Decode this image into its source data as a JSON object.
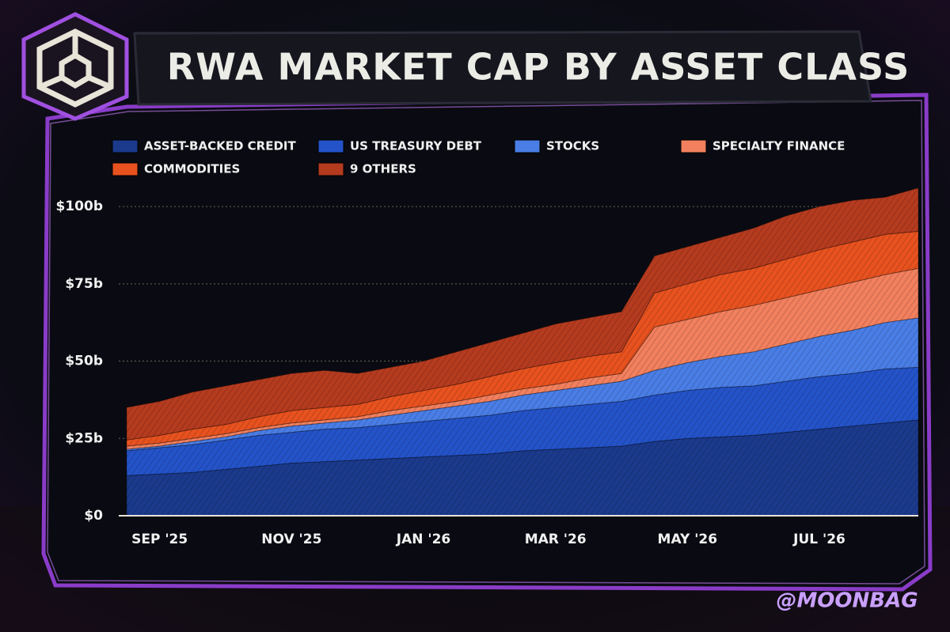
{
  "chart_data": {
    "type": "stacked_area",
    "title": "RWA MARKET CAP BY ASSET CLASS",
    "watermark": "@MOONBAG",
    "categories": [
      null,
      "SEP '25",
      null,
      null,
      null,
      "NOV '25",
      null,
      null,
      null,
      "JAN '26",
      null,
      null,
      null,
      "MAR '26",
      null,
      null,
      null,
      "MAY '26",
      null,
      null,
      null,
      "JUL '26",
      null,
      null,
      null
    ],
    "series": [
      {
        "name": "ASSET-BACKED CREDIT",
        "color": "#1b3a8c",
        "values": [
          13,
          13.5,
          14,
          15,
          16,
          17,
          17.5,
          18,
          18.5,
          19,
          19.5,
          20,
          21,
          21.5,
          22,
          22.5,
          24,
          25,
          25.5,
          26,
          27,
          28,
          29,
          30,
          31
        ]
      },
      {
        "name": "US TREASURY DEBT",
        "color": "#2453c9",
        "values": [
          8,
          8.5,
          9,
          9.5,
          10,
          10,
          10.5,
          10.5,
          11,
          11.5,
          12,
          12.5,
          13,
          13.5,
          14,
          14.5,
          15,
          15.5,
          16,
          16,
          16.5,
          17,
          17,
          17.5,
          17
        ]
      },
      {
        "name": "STOCKS",
        "color": "#4a7ee6",
        "values": [
          0.5,
          0.5,
          1,
          1,
          1.5,
          2,
          2,
          2.5,
          3,
          3.5,
          4,
          4.5,
          5,
          5.5,
          6,
          6.5,
          8,
          9,
          10,
          11,
          12,
          13,
          14,
          15,
          16
        ]
      },
      {
        "name": "SPECIALTY FINANCE",
        "color": "#f2805e",
        "values": [
          1,
          1,
          1,
          1,
          1,
          1,
          1,
          1,
          1.5,
          1.5,
          1.5,
          2,
          2,
          2,
          2.5,
          2.5,
          14,
          14,
          14.5,
          15,
          15,
          15,
          15.5,
          15.5,
          16
        ]
      },
      {
        "name": "COMMODITIES",
        "color": "#e8521f",
        "values": [
          2,
          2.5,
          3,
          3,
          3.5,
          4,
          4,
          4,
          4.5,
          5,
          5.5,
          6,
          6.5,
          7,
          7,
          7,
          11,
          11.5,
          12,
          12,
          12.5,
          13,
          13,
          13,
          12
        ]
      },
      {
        "name": "9 OTHERS",
        "color": "#b53b1f",
        "values": [
          10.5,
          11,
          12,
          12.5,
          12,
          12,
          12,
          10,
          9.5,
          9.5,
          10.5,
          11,
          11.5,
          12.5,
          12.5,
          13,
          12,
          12,
          12,
          13,
          14,
          14,
          13.5,
          12,
          14
        ]
      }
    ],
    "ylim": [
      0,
      110
    ],
    "yticks": [
      {
        "value": 0,
        "label": "$0"
      },
      {
        "value": 25,
        "label": "$25b"
      },
      {
        "value": 50,
        "label": "$50b"
      },
      {
        "value": 75,
        "label": "$75b"
      },
      {
        "value": 100,
        "label": "$100b"
      }
    ],
    "grid": true
  }
}
